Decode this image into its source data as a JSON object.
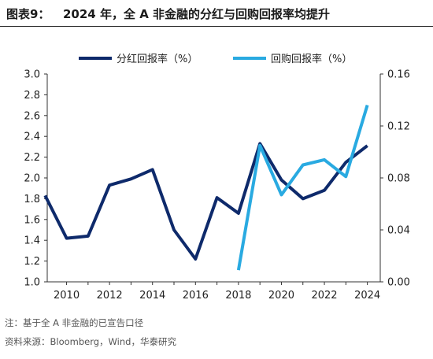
{
  "figure": {
    "label": "图表9：",
    "title": "2024 年，全 A 非金融的分红与回购回报率均提升"
  },
  "footer": {
    "note": "注：基于全 A 非金融的已宣告口径",
    "source": "资料来源：Bloomberg，Wind，华泰研究"
  },
  "colors": {
    "dividend": "#0e2a6b",
    "buyback": "#29aae1"
  },
  "chart_data": {
    "type": "line",
    "x_tick_labels": [
      "2010",
      "2012",
      "2014",
      "2016",
      "2018",
      "2020",
      "2022",
      "2024"
    ],
    "x_range": [
      2009.1,
      2024.6
    ],
    "left_axis": {
      "ylim": [
        1.0,
        3.0
      ],
      "ticks": [
        "1.0",
        "1.2",
        "1.4",
        "1.6",
        "1.8",
        "2.0",
        "2.2",
        "2.4",
        "2.6",
        "2.8",
        "3.0"
      ]
    },
    "right_axis": {
      "ylim": [
        0.0,
        0.16
      ],
      "ticks": [
        "0.00",
        "0.04",
        "0.08",
        "0.12",
        "0.16"
      ]
    },
    "legend_position": "top",
    "series": [
      {
        "name": "分红回报率（%）",
        "axis": "left",
        "x": [
          2009,
          2010,
          2011,
          2012,
          2013,
          2014,
          2015,
          2016,
          2017,
          2018,
          2019,
          2020,
          2021,
          2022,
          2023,
          2024
        ],
        "values": [
          1.83,
          1.42,
          1.44,
          1.93,
          1.99,
          2.08,
          1.5,
          1.22,
          1.81,
          1.66,
          2.33,
          1.98,
          1.8,
          1.88,
          2.15,
          2.31
        ]
      },
      {
        "name": "回购回报率（%）",
        "axis": "right",
        "x": [
          2018,
          2019,
          2020,
          2021,
          2022,
          2023,
          2024
        ],
        "values": [
          0.009,
          0.105,
          0.067,
          0.09,
          0.094,
          0.081,
          0.136
        ]
      }
    ]
  }
}
